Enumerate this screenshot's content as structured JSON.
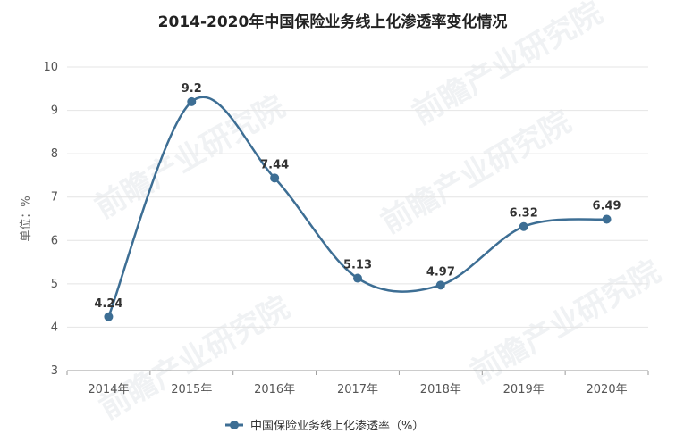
{
  "colors": {
    "series": "#3d6e94",
    "grid": "#e4e4e4",
    "axis": "#999999"
  },
  "watermark": {
    "text": "前瞻产业研究院"
  },
  "chart_data": {
    "type": "line",
    "title": "2014-2020年中国保险业务线上化渗透率变化情况",
    "xlabel": "",
    "ylabel": "单位：%",
    "categories": [
      "2014年",
      "2015年",
      "2016年",
      "2017年",
      "2018年",
      "2019年",
      "2020年"
    ],
    "series": [
      {
        "name": "中国保险业务线上化渗透率（%）",
        "values": [
          4.24,
          9.2,
          7.44,
          5.13,
          4.97,
          6.32,
          6.49
        ],
        "labels": [
          "4.24",
          "9.2",
          "7.44",
          "5.13",
          "4.97",
          "6.32",
          "6.49"
        ]
      }
    ],
    "yticks": [
      "3",
      "4",
      "5",
      "6",
      "7",
      "8",
      "9",
      "10"
    ],
    "ylim": [
      3,
      10
    ],
    "grid": true,
    "smooth": true,
    "legend": "bottom-center"
  }
}
